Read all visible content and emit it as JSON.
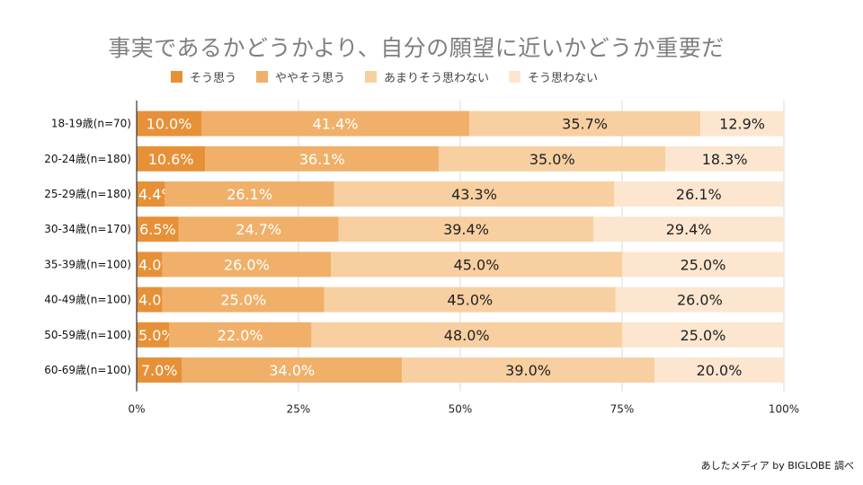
{
  "chart_data": {
    "type": "bar",
    "orientation": "horizontal",
    "stacked": "percent",
    "title": "事実であるかどうかより、自分の願望に近いかどうか重要だ",
    "categories": [
      "18-19歳(n=70)",
      "20-24歳(n=180)",
      "25-29歳(n=180)",
      "30-34歳(n=170)",
      "35-39歳(n=100)",
      "40-49歳(n=100)",
      "50-59歳(n=100)",
      "60-69歳(n=100)"
    ],
    "series": [
      {
        "name": "そう思う",
        "color": "#e69138",
        "label_color": "#ffffff",
        "values": [
          10.0,
          10.6,
          4.4,
          6.5,
          4.0,
          4.0,
          5.0,
          7.0
        ],
        "labels": [
          "10.0%",
          "10.6%",
          "4.4%",
          "6.5%",
          "4.0%",
          "4.0%",
          "5.0%",
          "7.0%"
        ]
      },
      {
        "name": "ややそう思う",
        "color": "#f0b06a",
        "label_color": "#ffffff",
        "values": [
          41.4,
          36.1,
          26.1,
          24.7,
          26.0,
          25.0,
          22.0,
          34.0
        ],
        "labels": [
          "41.4%",
          "36.1%",
          "26.1%",
          "24.7%",
          "26.0%",
          "25.0%",
          "22.0%",
          "34.0%"
        ]
      },
      {
        "name": "あまりそう思わない",
        "color": "#f8cfa0",
        "label_color": "#222222",
        "values": [
          35.7,
          35.0,
          43.3,
          39.4,
          45.0,
          45.0,
          48.0,
          39.0
        ],
        "labels": [
          "35.7%",
          "35.0%",
          "43.3%",
          "39.4%",
          "45.0%",
          "45.0%",
          "48.0%",
          "39.0%"
        ]
      },
      {
        "name": "そう思わない",
        "color": "#fce6cf",
        "label_color": "#222222",
        "values": [
          12.9,
          18.3,
          26.1,
          29.4,
          25.0,
          26.0,
          25.0,
          20.0
        ],
        "labels": [
          "12.9%",
          "18.3%",
          "26.1%",
          "29.4%",
          "25.0%",
          "26.0%",
          "25.0%",
          "20.0%"
        ]
      }
    ],
    "xlim": [
      0,
      100
    ],
    "x_ticks": [
      0,
      25,
      50,
      75,
      100
    ],
    "x_tick_labels": [
      "0%",
      "25%",
      "50%",
      "75%",
      "100%"
    ],
    "grid": true,
    "legend_position": "top"
  },
  "source_note": "あしたメディア by BIGLOBE 調べ"
}
